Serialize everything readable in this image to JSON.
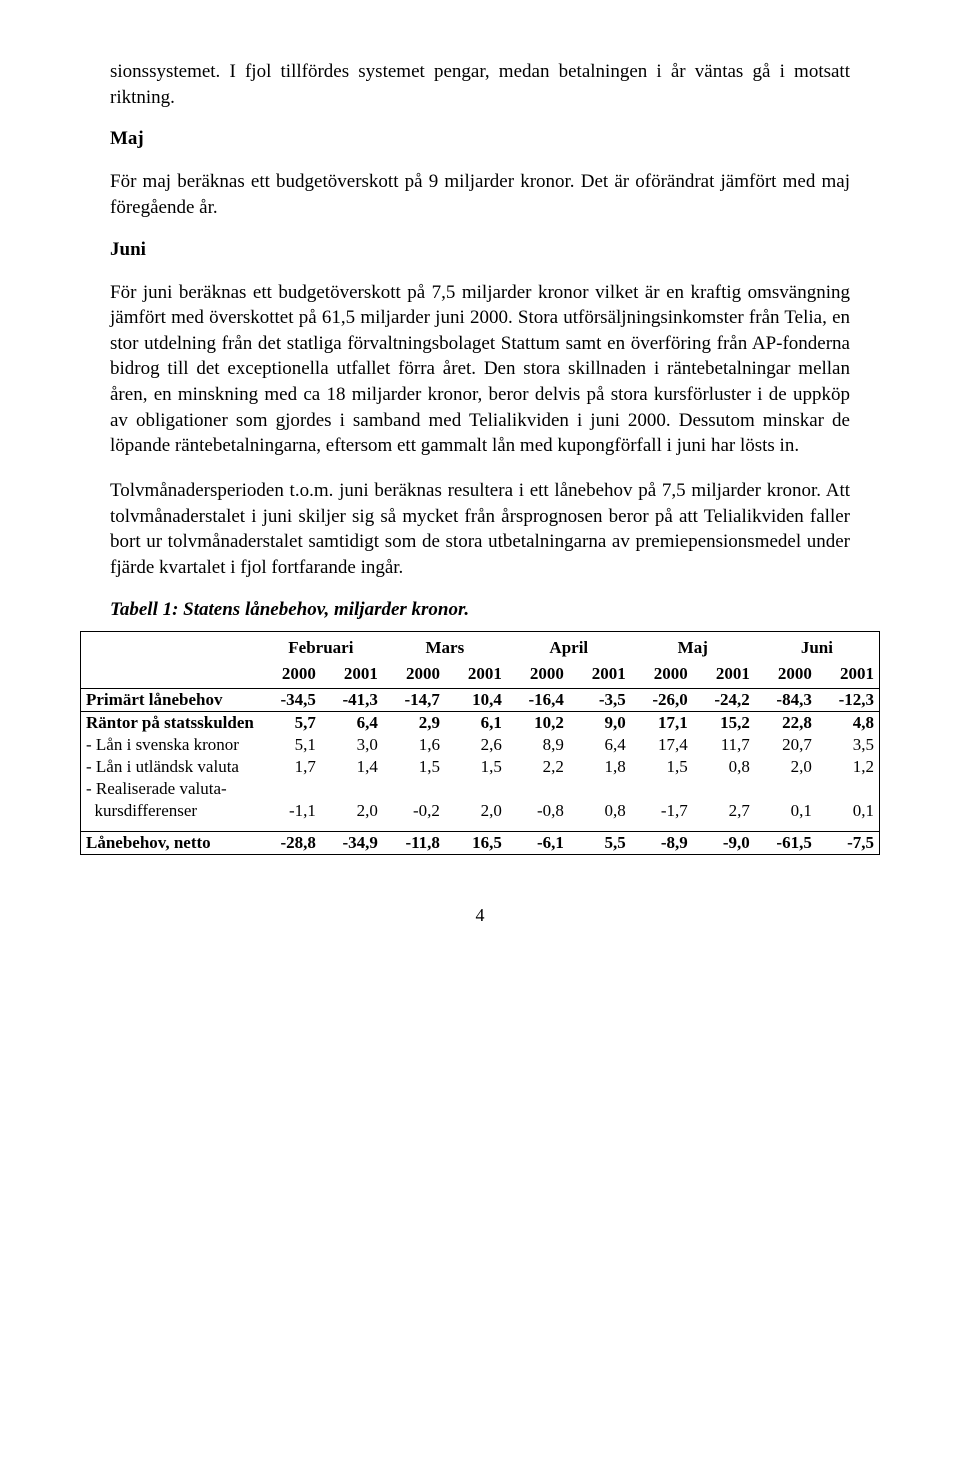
{
  "para_intro": "sionssystemet. I fjol tillfördes systemet pengar, medan betalningen i år väntas gå i motsatt riktning.",
  "maj": {
    "heading": "Maj",
    "text": "För maj beräknas ett budgetöverskott på 9 miljarder kronor. Det är oförändrat jämfört med maj föregående år."
  },
  "juni": {
    "heading": "Juni",
    "text": "För juni beräknas ett budgetöverskott på 7,5 miljarder kronor vilket är en kraftig omsvängning jämfört med överskottet på 61,5 miljarder juni 2000. Stora utförsäljningsinkomster från Telia, en stor utdelning från det statliga förvaltningsbolaget Stattum samt en överföring från AP-fonderna bidrog till det exceptionella utfallet förra året. Den stora skillnaden i räntebetalningar mellan åren, en minskning med ca 18 miljarder kronor, beror delvis på stora kursförluster i de uppköp av obligationer som gjordes i samband med Telialikviden i juni 2000. Dessutom minskar de löpande räntebetalningarna, eftersom ett gammalt lån med kupongförfall i juni har lösts in."
  },
  "para_tolv": "Tolvmånadersperioden t.o.m. juni beräknas resultera i ett lånebehov på 7,5 miljarder kronor. Att tolvmånaderstalet i juni skiljer sig så mycket från årsprognosen beror på att Telialikviden faller bort ur tolvmånaderstalet samtidigt som de stora utbetalningarna av premiepensionsmedel under fjärde kvartalet i fjol fortfarande ingår.",
  "table": {
    "caption": "Tabell 1: Statens lånebehov, miljarder kronor.",
    "months": [
      "Februari",
      "Mars",
      "April",
      "Maj",
      "Juni"
    ],
    "years": [
      "2000",
      "2001"
    ],
    "rows": [
      {
        "label": "Primärt lånebehov",
        "bold": true,
        "vals": [
          "-34,5",
          "-41,3",
          "-14,7",
          "10,4",
          "-16,4",
          "-3,5",
          "-26,0",
          "-24,2",
          "-84,3",
          "-12,3"
        ]
      },
      {
        "label": "Räntor på statsskulden",
        "bold": true,
        "vals": [
          "5,7",
          "6,4",
          "2,9",
          "6,1",
          "10,2",
          "9,0",
          "17,1",
          "15,2",
          "22,8",
          "4,8"
        ]
      },
      {
        "label": "- Lån i svenska kronor",
        "bold": false,
        "vals": [
          "5,1",
          "3,0",
          "1,6",
          "2,6",
          "8,9",
          "6,4",
          "17,4",
          "11,7",
          "20,7",
          "3,5"
        ]
      },
      {
        "label": "- Lån i utländsk valuta",
        "bold": false,
        "vals": [
          "1,7",
          "1,4",
          "1,5",
          "1,5",
          "2,2",
          "1,8",
          "1,5",
          "0,8",
          "2,0",
          "1,2"
        ]
      },
      {
        "label": "- Realiserade valuta-",
        "bold": false,
        "vals": [
          "",
          "",
          "",
          "",
          "",
          "",
          "",
          "",
          "",
          ""
        ]
      },
      {
        "label": "  kursdifferenser",
        "bold": false,
        "vals": [
          "-1,1",
          "2,0",
          "-0,2",
          "2,0",
          "-0,8",
          "0,8",
          "-1,7",
          "2,7",
          "0,1",
          "0,1"
        ]
      },
      {
        "label": "Lånebehov, netto",
        "bold": true,
        "vals": [
          "-28,8",
          "-34,9",
          "-11,8",
          "16,5",
          "-6,1",
          "5,5",
          "-8,9",
          "-9,0",
          "-61,5",
          "-7,5"
        ]
      }
    ]
  },
  "page_number": "4"
}
